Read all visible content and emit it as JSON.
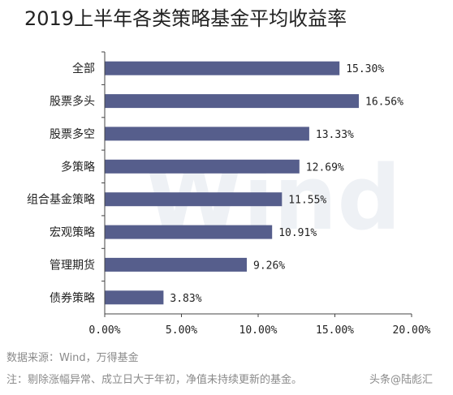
{
  "chart_data": {
    "type": "bar",
    "orientation": "horizontal",
    "title": "2019上半年各类策略基金平均收益率",
    "categories": [
      "全部",
      "股票多头",
      "股票多空",
      "多策略",
      "组合基金策略",
      "宏观策略",
      "管理期货",
      "债券策略"
    ],
    "values": [
      15.3,
      16.56,
      13.33,
      12.69,
      11.55,
      10.91,
      9.26,
      3.83
    ],
    "value_labels": [
      "15.30%",
      "16.56%",
      "13.33%",
      "12.69%",
      "11.55%",
      "10.91%",
      "9.26%",
      "3.83%"
    ],
    "xlim": [
      0,
      20
    ],
    "x_ticks": [
      0,
      5,
      10,
      15,
      20
    ],
    "x_tick_labels": [
      "0.00%",
      "5.00%",
      "10.00%",
      "15.00%",
      "20.00%"
    ],
    "xlabel": "",
    "ylabel": "",
    "grid": false,
    "legend": "none",
    "bar_color": "#565e8c"
  },
  "source_note": "数据来源：Wind，万得基金",
  "footnote": "注：剔除涨幅异常、成立日大于年初，净值未持续更新的基金。",
  "overlay_text": "头条@陆彪汇",
  "watermark_text": "Wind"
}
